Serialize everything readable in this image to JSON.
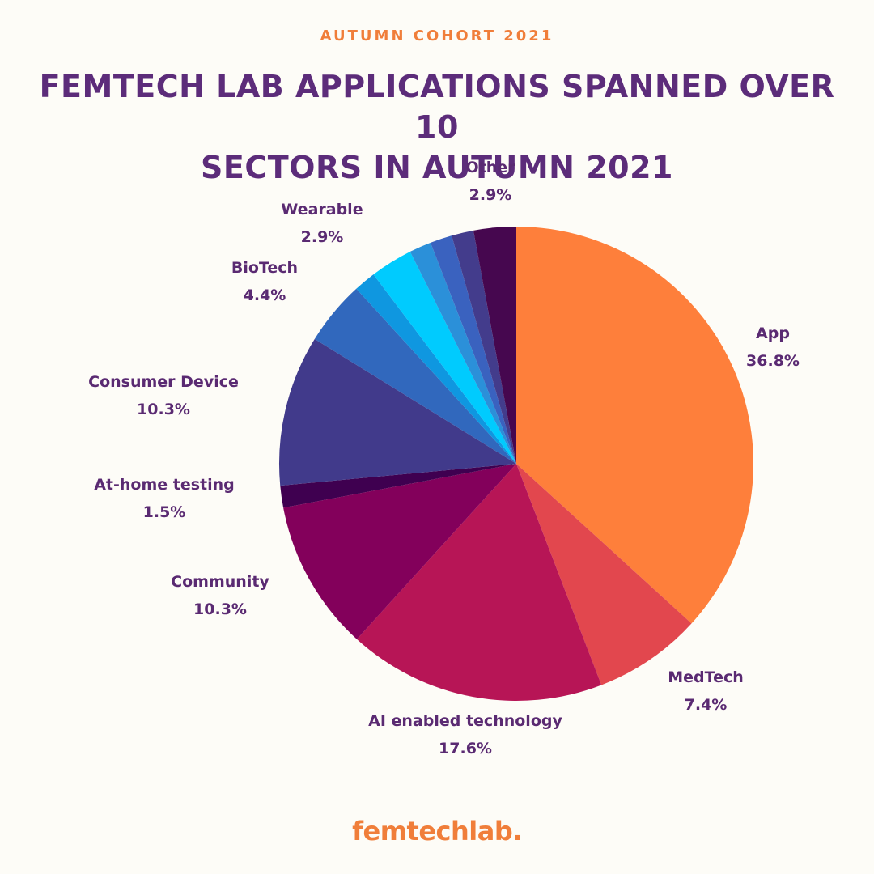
{
  "header": {
    "kicker": "AUTUMN COHORT 2021",
    "title_line1": "FEMTECH LAB APPLICATIONS SPANNED OVER 10",
    "title_line2": "SECTORS IN AUTUMN 2021"
  },
  "footer": {
    "logo_text": "femtechlab."
  },
  "chart_data": {
    "type": "pie",
    "title": "FEMTECH LAB APPLICATIONS SPANNED OVER 10 SECTORS IN AUTUMN 2021",
    "start": "12 o'clock",
    "direction": "clockwise",
    "slices": [
      {
        "label": "App",
        "value": 36.8,
        "value_text": "36.8%",
        "color": "#fe7f3b"
      },
      {
        "label": "MedTech",
        "value": 7.4,
        "value_text": "7.4%",
        "color": "#e2474e"
      },
      {
        "label": "AI enabled technology",
        "value": 17.6,
        "value_text": "17.6%",
        "color": "#b71556"
      },
      {
        "label": "Community",
        "value": 10.3,
        "value_text": "10.3%",
        "color": "#83005b"
      },
      {
        "label": "At-home testing",
        "value": 1.5,
        "value_text": "1.5%",
        "color": "#3f0050"
      },
      {
        "label": "Consumer Device",
        "value": 10.3,
        "value_text": "10.3%",
        "color": "#413a8b"
      },
      {
        "label": "BioTech",
        "value": 4.4,
        "value_text": "4.4%",
        "color": "#3168bd"
      },
      {
        "label": "",
        "value": 1.5,
        "value_text": "",
        "color": "#0f97e0"
      },
      {
        "label": "Wearable",
        "value": 2.9,
        "value_text": "2.9%",
        "color": "#00cbfe"
      },
      {
        "label": "",
        "value": 1.5,
        "value_text": "",
        "color": "#2b90d9"
      },
      {
        "label": "",
        "value": 1.5,
        "value_text": "",
        "color": "#3a62bf"
      },
      {
        "label": "",
        "value": 1.5,
        "value_text": "",
        "color": "#433c8c"
      },
      {
        "label": "Other",
        "value": 2.9,
        "value_text": "2.9%",
        "color": "#46074f"
      }
    ]
  }
}
